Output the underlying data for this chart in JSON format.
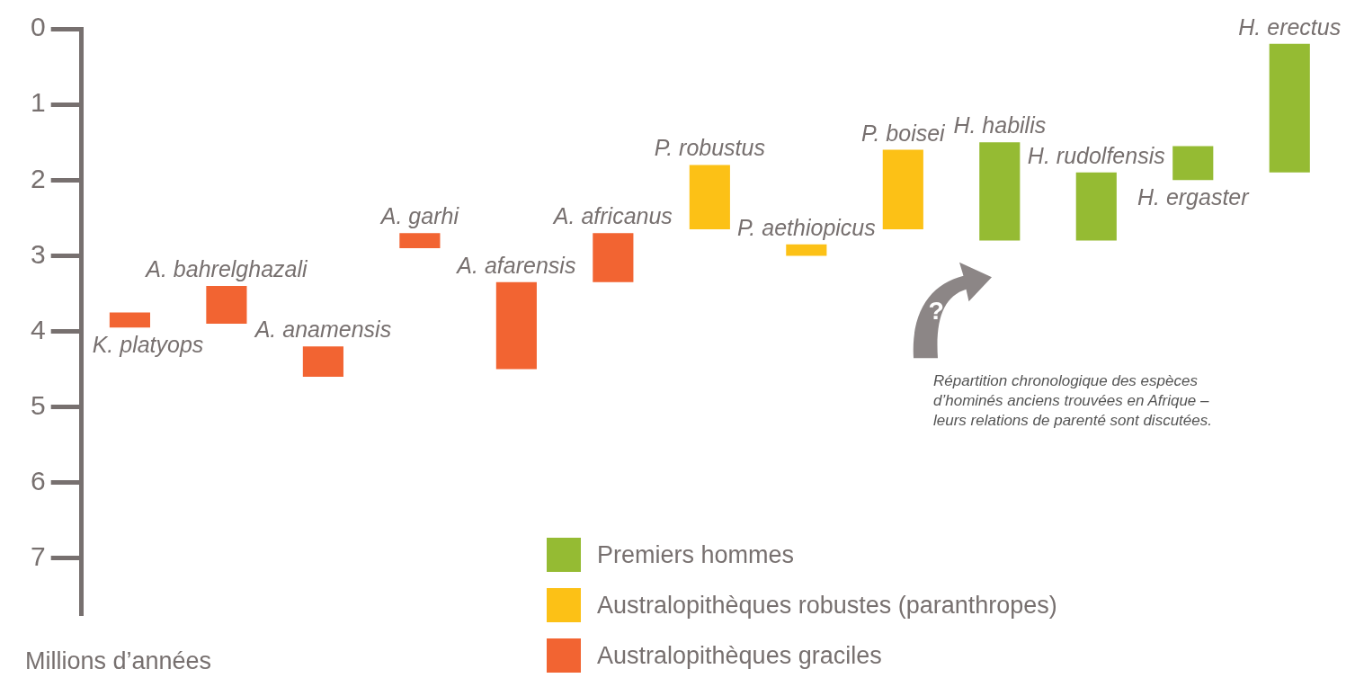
{
  "chart_data": {
    "type": "bar",
    "categories": [
      "K. platyops",
      "A. bahrelghazali",
      "A. anamensis",
      "A. garhi",
      "A. afarensis",
      "A. africanus",
      "P. robustus",
      "P. aethiopicus",
      "P. boisei",
      "H. habilis",
      "H. rudolfensis",
      "H. ergaster",
      "H. erectus"
    ],
    "series": [
      {
        "name": "Premiers hommes",
        "color": "#95bb33",
        "base": [
          null,
          null,
          null,
          null,
          null,
          null,
          null,
          null,
          null,
          1.5,
          1.9,
          1.55,
          0.2
        ],
        "values": [
          null,
          null,
          null,
          null,
          null,
          null,
          null,
          null,
          null,
          1.3,
          0.9,
          0.45,
          1.7
        ]
      },
      {
        "name": "Australopithèques robustes (paranthropes)",
        "color": "#fcc116",
        "base": [
          null,
          null,
          null,
          null,
          null,
          null,
          1.8,
          2.85,
          1.6,
          null,
          null,
          null,
          null
        ],
        "values": [
          null,
          null,
          null,
          null,
          null,
          null,
          0.85,
          0.15,
          1.05,
          null,
          null,
          null,
          null
        ]
      },
      {
        "name": "Australopithèques graciles",
        "color": "#f26432",
        "base": [
          3.75,
          3.4,
          4.2,
          2.7,
          3.35,
          2.7,
          null,
          null,
          null,
          null,
          null,
          null,
          null
        ],
        "values": [
          0.2,
          0.5,
          0.4,
          0.2,
          1.15,
          0.65,
          null,
          null,
          null,
          null,
          null,
          null,
          null
        ]
      }
    ],
    "ylabel": "Millions d’années",
    "ylim": [
      7.75,
      0
    ],
    "yticks": [
      0,
      1,
      2,
      3,
      4,
      5,
      6,
      7
    ],
    "grid": false,
    "legend": "bottom",
    "tick_labels": "y",
    "annotations": [
      "Répartition chronologique des espèces d’hominés anciens trouvées en Afrique – leurs relations de parenté sont discutées.",
      "?"
    ]
  }
}
